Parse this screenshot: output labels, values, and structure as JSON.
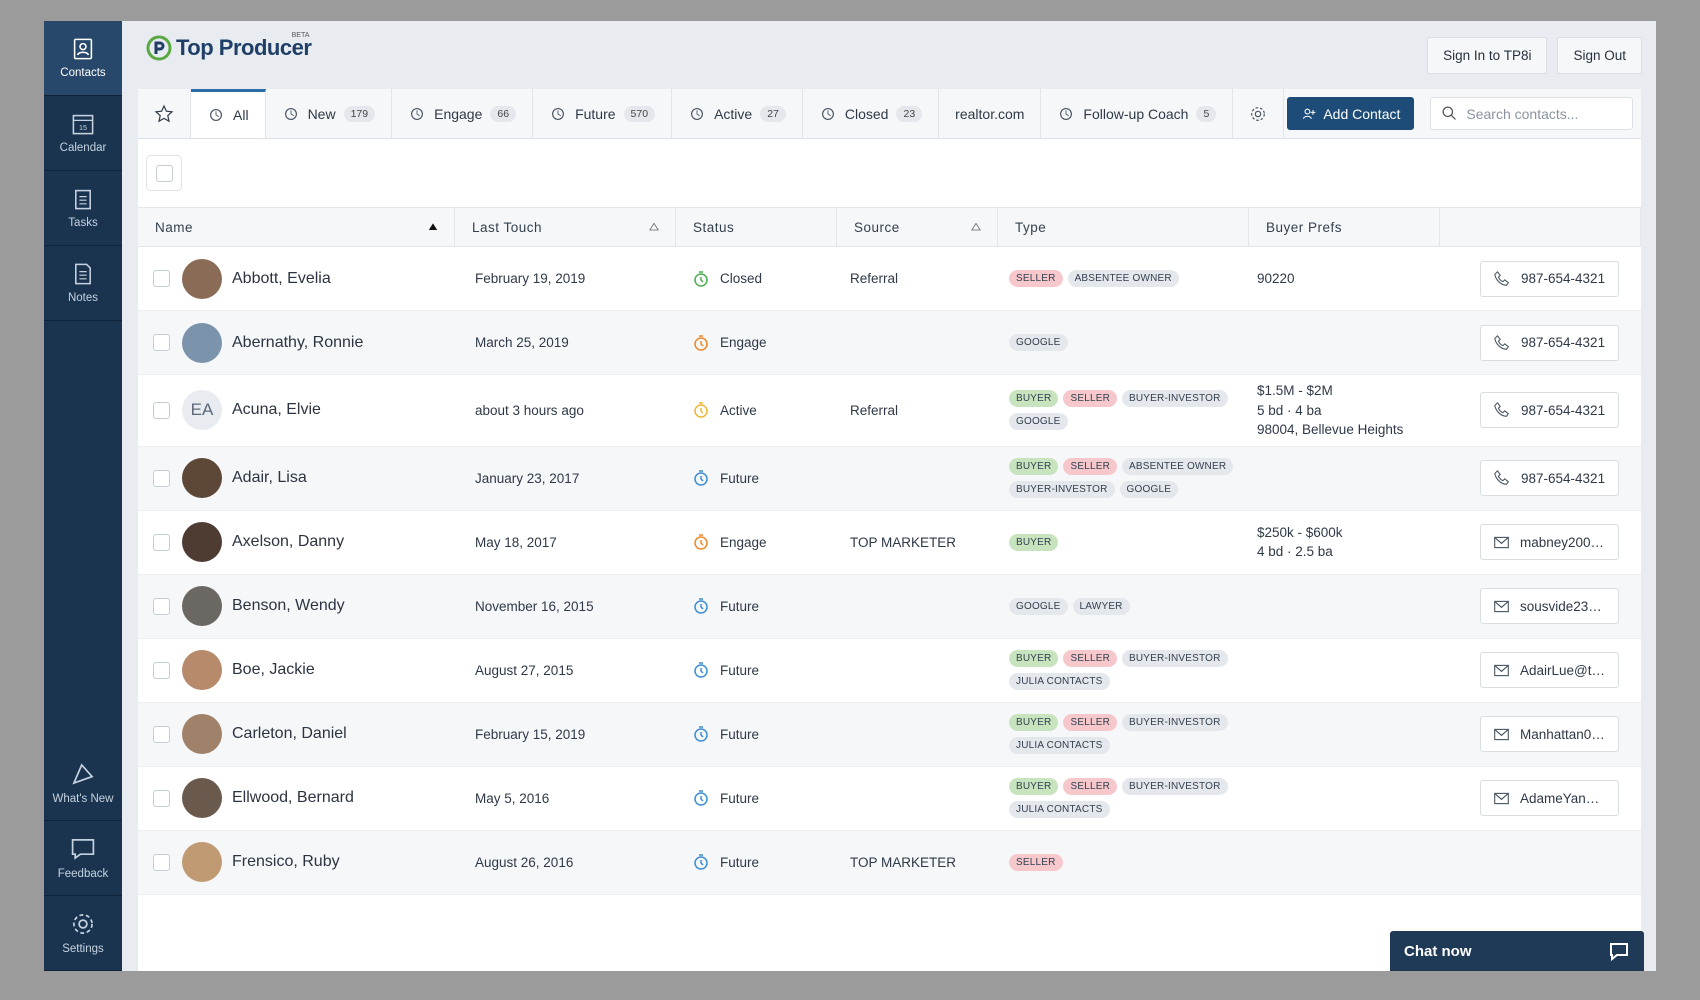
{
  "sidebar": {
    "top": [
      "Contacts",
      "Calendar",
      "Tasks",
      "Notes"
    ],
    "calendar_day": "15",
    "bottom": [
      "What's New",
      "Feedback",
      "Settings"
    ]
  },
  "header": {
    "logo": "Top Producer",
    "badge": "BETA",
    "buttons": [
      "Sign In to TP8i",
      "Sign Out"
    ]
  },
  "tabs": [
    {
      "label": "All"
    },
    {
      "label": "New",
      "count": 179
    },
    {
      "label": "Engage",
      "count": 66
    },
    {
      "label": "Future",
      "count": 570
    },
    {
      "label": "Active",
      "count": 27
    },
    {
      "label": "Closed",
      "count": 23
    },
    {
      "label": "realtor.com"
    },
    {
      "label": "Follow-up Coach",
      "count": 5
    }
  ],
  "add_contact": "Add Contact",
  "search_placeholder": "Search contacts...",
  "table": {
    "columns": [
      "Name",
      "Last Touch",
      "Status",
      "Source",
      "Type",
      "Buyer Prefs"
    ],
    "tag_colors": {
      "BUYER": "#c8e4bf",
      "SELLER": "#f6c8cc"
    },
    "status_colors": {
      "Closed": "#4caf50",
      "Engage": "#f0882a",
      "Active": "#f2b534",
      "Future": "#3b8fd2"
    },
    "rows": [
      {
        "name": "Abbott, Evelia",
        "last_touch": "February 19, 2019",
        "status": "Closed",
        "source": "Referral",
        "tags": [
          "SELLER",
          "ABSENTEE OWNER"
        ],
        "prefs": [
          "90220"
        ],
        "phone": "987-654-4321"
      },
      {
        "name": "Abernathy, Ronnie",
        "last_touch": "March 25, 2019",
        "status": "Engage",
        "tags": [
          "GOOGLE"
        ],
        "phone": "987-654-4321"
      },
      {
        "name": "Acuna, Elvie",
        "initials": "EA",
        "last_touch": "about 3 hours ago",
        "status": "Active",
        "source": "Referral",
        "tags": [
          "BUYER",
          "SELLER",
          "BUYER-INVESTOR",
          "GOOGLE"
        ],
        "prefs": [
          "$1.5M - $2M",
          "5 bd · 4 ba",
          "98004, Bellevue Heights"
        ],
        "phone": "987-654-4321"
      },
      {
        "name": "Adair, Lisa",
        "last_touch": "January 23, 2017",
        "status": "Future",
        "tags": [
          "BUYER",
          "SELLER",
          "ABSENTEE OWNER",
          "BUYER-INVESTOR",
          "GOOGLE"
        ],
        "phone": "987-654-4321"
      },
      {
        "name": "Axelson, Danny",
        "last_touch": "May 18, 2017",
        "status": "Engage",
        "source": "TOP MARKETER",
        "tags": [
          "BUYER"
        ],
        "prefs": [
          "$250k - $600k",
          "4 bd · 2.5 ba"
        ],
        "email": "mabney200…"
      },
      {
        "name": "Benson, Wendy",
        "last_touch": "November 16, 2015",
        "status": "Future",
        "tags": [
          "GOOGLE",
          "LAWYER"
        ],
        "email": "sousvide23…"
      },
      {
        "name": "Boe, Jackie",
        "last_touch": "August 27, 2015",
        "status": "Future",
        "tags": [
          "BUYER",
          "SELLER",
          "BUYER-INVESTOR",
          "JULIA CONTACTS"
        ],
        "email": "AdairLue@t…"
      },
      {
        "name": "Carleton, Daniel",
        "last_touch": "February 15, 2019",
        "status": "Future",
        "tags": [
          "BUYER",
          "SELLER",
          "BUYER-INVESTOR",
          "JULIA CONTACTS"
        ],
        "email": "Manhattan0…"
      },
      {
        "name": "Ellwood, Bernard",
        "last_touch": "May 5, 2016",
        "status": "Future",
        "tags": [
          "BUYER",
          "SELLER",
          "BUYER-INVESTOR",
          "JULIA CONTACTS"
        ],
        "email": "AdameYan…"
      },
      {
        "name": "Frensico, Ruby",
        "last_touch": "August 26, 2016",
        "status": "Future",
        "source": "TOP MARKETER",
        "tags": [
          "SELLER"
        ]
      }
    ]
  },
  "chat": "Chat now"
}
